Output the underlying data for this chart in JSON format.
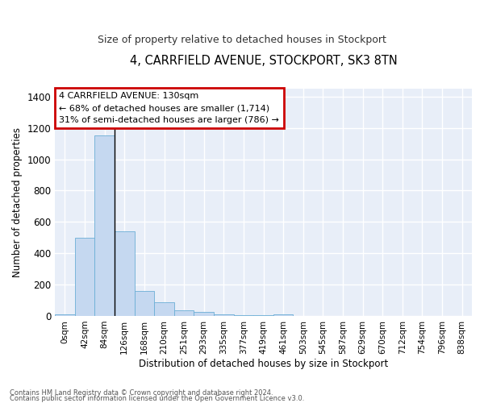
{
  "title": "4, CARRFIELD AVENUE, STOCKPORT, SK3 8TN",
  "subtitle": "Size of property relative to detached houses in Stockport",
  "xlabel": "Distribution of detached houses by size in Stockport",
  "ylabel": "Number of detached properties",
  "footnote1": "Contains HM Land Registry data © Crown copyright and database right 2024.",
  "footnote2": "Contains public sector information licensed under the Open Government Licence v3.0.",
  "bar_values": [
    10,
    500,
    1150,
    540,
    160,
    85,
    35,
    25,
    10,
    5,
    5,
    10,
    0,
    0,
    0,
    0,
    0,
    0,
    0,
    0,
    0
  ],
  "bar_labels": [
    "0sqm",
    "42sqm",
    "84sqm",
    "126sqm",
    "168sqm",
    "210sqm",
    "251sqm",
    "293sqm",
    "335sqm",
    "377sqm",
    "419sqm",
    "461sqm",
    "503sqm",
    "545sqm",
    "587sqm",
    "629sqm",
    "670sqm",
    "712sqm",
    "754sqm",
    "796sqm",
    "838sqm"
  ],
  "bar_color": "#c5d8f0",
  "bar_edge_color": "#6baed6",
  "background_color": "#e8eef8",
  "vline_x": 3.0,
  "vline_color": "#000000",
  "annotation_text1": "4 CARRFIELD AVENUE: 130sqm",
  "annotation_text2": "← 68% of detached houses are smaller (1,714)",
  "annotation_text3": "31% of semi-detached houses are larger (786) →",
  "annotation_box_color": "#ffffff",
  "annotation_border_color": "#cc0000",
  "ylim": [
    0,
    1450
  ],
  "yticks": [
    0,
    200,
    400,
    600,
    800,
    1000,
    1200,
    1400
  ]
}
